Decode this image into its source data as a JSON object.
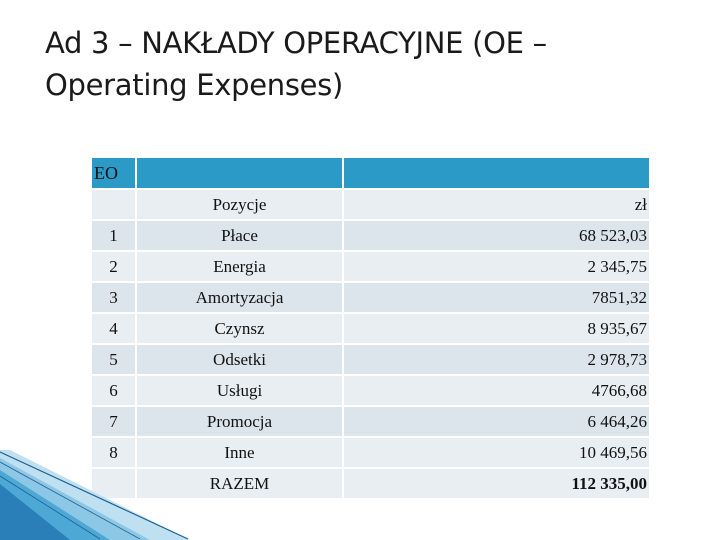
{
  "title": "Ad 3 – NAKŁADY OPERACYJNE (OE – Operating Expenses)",
  "table": {
    "header_label": "EO",
    "columns": {
      "pos": "Pozycje",
      "unit": "zł"
    },
    "rows": [
      {
        "num": "1",
        "name": "Płace",
        "value": "68 523,03"
      },
      {
        "num": "2",
        "name": "Energia",
        "value": "2 345,75"
      },
      {
        "num": "3",
        "name": "Amortyzacja",
        "value": "7851,32"
      },
      {
        "num": "4",
        "name": "Czynsz",
        "value": "8 935,67"
      },
      {
        "num": "5",
        "name": "Odsetki",
        "value": "2 978,73"
      },
      {
        "num": "6",
        "name": "Usługi",
        "value": "4766,68"
      },
      {
        "num": "7",
        "name": "Promocja",
        "value": "6 464,26"
      },
      {
        "num": "8",
        "name": "Inne",
        "value": "10 469,56"
      }
    ],
    "total": {
      "name": "RAZEM",
      "value": "112 335,00"
    }
  },
  "colors": {
    "header": "#2b9ac7",
    "row_light": "#e9eef3",
    "row_dark": "#dde5ec",
    "deco": "#2a7fb8"
  }
}
